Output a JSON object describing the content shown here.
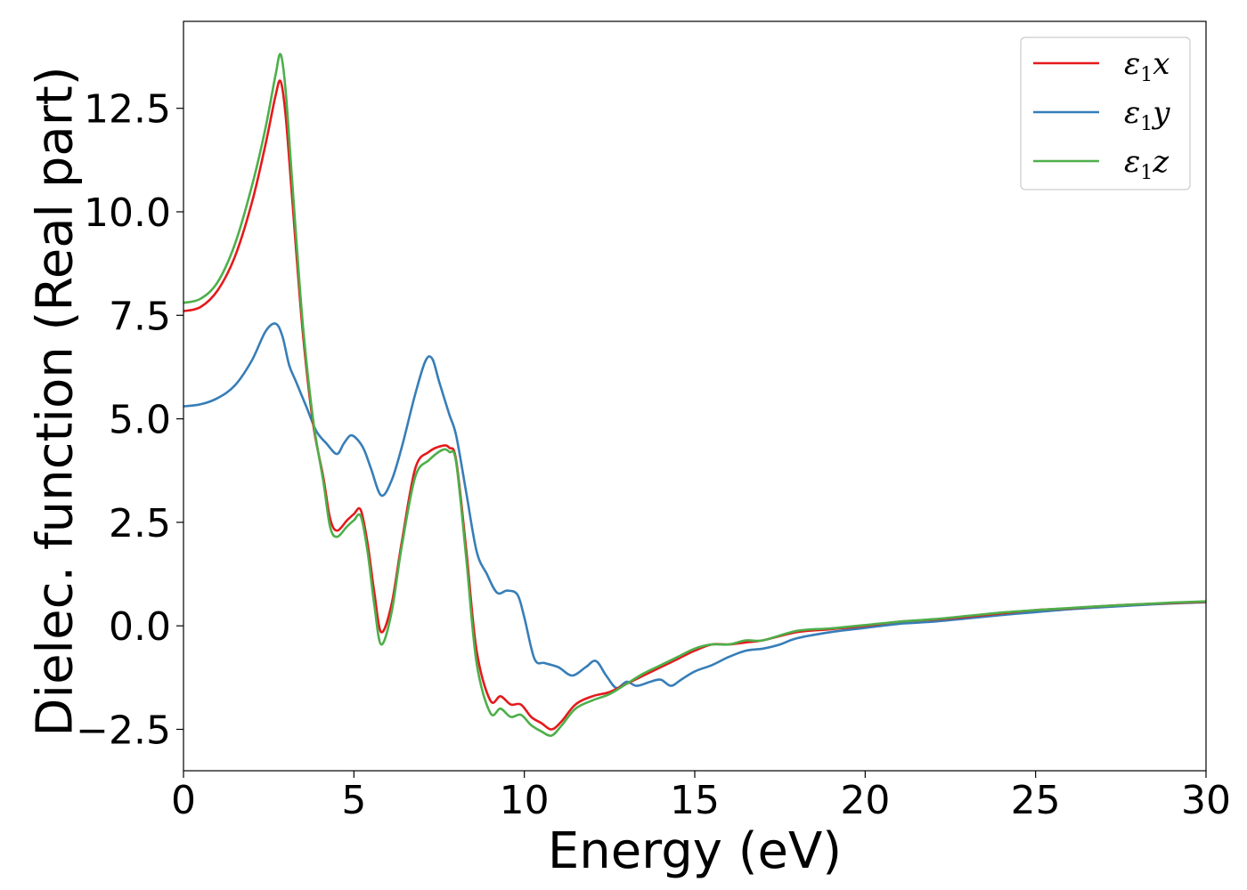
{
  "chart_data": {
    "type": "line",
    "xlabel": "Energy (eV)",
    "ylabel": "Dielec. function (Real part)",
    "xlim": [
      0,
      30
    ],
    "ylim": [
      -3.5,
      14.6
    ],
    "xticks": [
      0,
      5,
      10,
      15,
      20,
      25,
      30
    ],
    "xtick_labels": [
      "0",
      "5",
      "10",
      "15",
      "20",
      "25",
      "30"
    ],
    "yticks": [
      -2.5,
      0.0,
      2.5,
      5.0,
      7.5,
      10.0,
      12.5
    ],
    "ytick_labels": [
      "−2.5",
      "0.0",
      "2.5",
      "5.0",
      "7.5",
      "10.0",
      "12.5"
    ],
    "grid": false,
    "legend_position": "top-right",
    "series": [
      {
        "name": "ε₁x",
        "legend": {
          "symbol": "ε",
          "sub": "1",
          "var": "x"
        },
        "color": "#e41a1c",
        "x": [
          0,
          0.5,
          1.0,
          1.5,
          2.0,
          2.4,
          2.7,
          2.85,
          3.0,
          3.2,
          3.5,
          3.8,
          4.1,
          4.3,
          4.5,
          4.8,
          5.0,
          5.2,
          5.4,
          5.6,
          5.8,
          6.1,
          6.4,
          6.8,
          7.2,
          7.6,
          7.8,
          8.0,
          8.3,
          8.6,
          9.0,
          9.3,
          9.6,
          9.9,
          10.2,
          10.5,
          10.8,
          11.1,
          11.5,
          12.0,
          12.5,
          13.0,
          13.5,
          14.0,
          14.5,
          15.0,
          15.5,
          16.0,
          16.5,
          17.0,
          18.0,
          19.0,
          20.0,
          21.0,
          22.0,
          23.0,
          24.0,
          25.0,
          26.0,
          27.0,
          28.0,
          29.0,
          30.0
        ],
        "y": [
          7.6,
          7.7,
          8.1,
          8.9,
          10.2,
          11.6,
          12.8,
          13.15,
          12.3,
          10.2,
          7.1,
          4.9,
          3.6,
          2.6,
          2.3,
          2.55,
          2.7,
          2.8,
          2.0,
          0.8,
          -0.15,
          0.5,
          2.0,
          3.8,
          4.2,
          4.35,
          4.3,
          4.0,
          1.8,
          -0.6,
          -1.8,
          -1.7,
          -1.9,
          -1.9,
          -2.2,
          -2.35,
          -2.5,
          -2.3,
          -1.9,
          -1.7,
          -1.6,
          -1.4,
          -1.2,
          -1.0,
          -0.8,
          -0.6,
          -0.45,
          -0.45,
          -0.4,
          -0.35,
          -0.15,
          -0.08,
          0.0,
          0.1,
          0.15,
          0.22,
          0.3,
          0.38,
          0.42,
          0.48,
          0.52,
          0.55,
          0.58
        ]
      },
      {
        "name": "ε₁y",
        "legend": {
          "symbol": "ε",
          "sub": "1",
          "var": "y"
        },
        "color": "#377eb8",
        "x": [
          0,
          0.5,
          1.0,
          1.5,
          2.0,
          2.4,
          2.7,
          2.9,
          3.1,
          3.3,
          3.6,
          3.9,
          4.2,
          4.5,
          4.7,
          4.9,
          5.1,
          5.3,
          5.5,
          5.8,
          6.1,
          6.4,
          6.8,
          7.1,
          7.3,
          7.5,
          7.8,
          8.0,
          8.3,
          8.6,
          8.9,
          9.2,
          9.5,
          9.8,
          10.0,
          10.3,
          10.6,
          11.0,
          11.4,
          11.8,
          12.1,
          12.4,
          12.7,
          13.0,
          13.3,
          13.7,
          14.0,
          14.3,
          14.6,
          15.0,
          15.5,
          16.0,
          16.5,
          17.0,
          17.5,
          18.0,
          19.0,
          20.0,
          21.0,
          22.0,
          23.0,
          24.0,
          25.0,
          26.0,
          27.0,
          28.0,
          29.0,
          30.0
        ],
        "y": [
          5.3,
          5.35,
          5.5,
          5.8,
          6.4,
          7.1,
          7.3,
          7.0,
          6.3,
          5.9,
          5.3,
          4.7,
          4.4,
          4.15,
          4.4,
          4.6,
          4.5,
          4.25,
          3.8,
          3.15,
          3.5,
          4.3,
          5.6,
          6.4,
          6.45,
          5.9,
          5.1,
          4.6,
          3.2,
          1.8,
          1.25,
          0.8,
          0.85,
          0.75,
          0.2,
          -0.8,
          -0.9,
          -1.0,
          -1.2,
          -1.0,
          -0.85,
          -1.2,
          -1.5,
          -1.35,
          -1.45,
          -1.35,
          -1.3,
          -1.45,
          -1.3,
          -1.1,
          -0.95,
          -0.75,
          -0.6,
          -0.55,
          -0.45,
          -0.3,
          -0.15,
          -0.05,
          0.05,
          0.1,
          0.18,
          0.26,
          0.33,
          0.4,
          0.45,
          0.5,
          0.54,
          0.57
        ]
      },
      {
        "name": "ε₁z",
        "legend": {
          "symbol": "ε",
          "sub": "1",
          "var": "z"
        },
        "color": "#4daf4a",
        "x": [
          0,
          0.5,
          1.0,
          1.5,
          2.0,
          2.4,
          2.7,
          2.85,
          3.0,
          3.2,
          3.5,
          3.8,
          4.1,
          4.3,
          4.5,
          4.8,
          5.0,
          5.2,
          5.4,
          5.6,
          5.8,
          6.1,
          6.4,
          6.8,
          7.2,
          7.6,
          7.8,
          8.0,
          8.3,
          8.6,
          9.0,
          9.3,
          9.6,
          9.9,
          10.2,
          10.5,
          10.8,
          11.1,
          11.5,
          12.0,
          12.5,
          13.0,
          13.5,
          14.0,
          14.5,
          15.0,
          15.5,
          16.0,
          16.5,
          17.0,
          18.0,
          19.0,
          20.0,
          21.0,
          22.0,
          23.0,
          24.0,
          25.0,
          26.0,
          27.0,
          28.0,
          29.0,
          30.0
        ],
        "y": [
          7.8,
          7.9,
          8.3,
          9.2,
          10.6,
          12.0,
          13.3,
          13.8,
          12.9,
          10.6,
          7.3,
          5.0,
          3.5,
          2.4,
          2.15,
          2.4,
          2.55,
          2.65,
          1.8,
          0.5,
          -0.45,
          0.3,
          1.9,
          3.6,
          4.0,
          4.25,
          4.2,
          3.95,
          1.6,
          -0.9,
          -2.1,
          -2.0,
          -2.2,
          -2.15,
          -2.4,
          -2.55,
          -2.65,
          -2.4,
          -2.0,
          -1.8,
          -1.65,
          -1.4,
          -1.15,
          -0.95,
          -0.75,
          -0.55,
          -0.45,
          -0.45,
          -0.35,
          -0.35,
          -0.12,
          -0.06,
          0.02,
          0.1,
          0.16,
          0.24,
          0.32,
          0.38,
          0.43,
          0.48,
          0.52,
          0.56,
          0.59
        ]
      }
    ]
  }
}
